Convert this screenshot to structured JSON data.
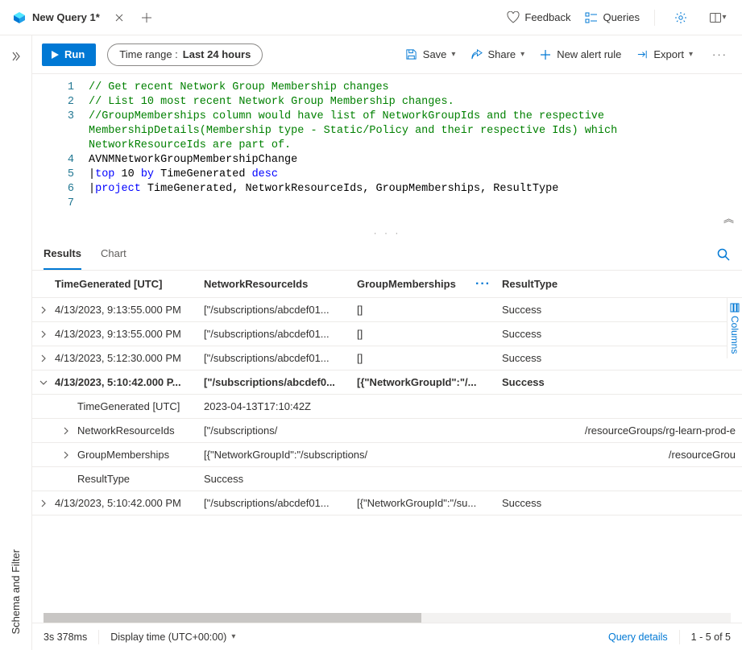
{
  "tab": {
    "title": "New Query 1*"
  },
  "topActions": {
    "feedback": "Feedback",
    "queries": "Queries"
  },
  "toolbar": {
    "run": "Run",
    "timerange_label": "Time range :",
    "timerange_value": "Last 24 hours",
    "save": "Save",
    "share": "Share",
    "newAlert": "New alert rule",
    "export": "Export"
  },
  "leftRail": {
    "label": "Schema and Filter"
  },
  "code": {
    "lines": [
      {
        "n": 1,
        "segs": [
          {
            "t": "// Get recent Network Group Membership changes",
            "c": "tok-comment"
          }
        ]
      },
      {
        "n": 2,
        "segs": [
          {
            "t": "// List 10 most recent Network Group Membership changes.",
            "c": "tok-comment"
          }
        ]
      },
      {
        "n": 3,
        "segs": [
          {
            "t": "//GroupMemberships column would have list of NetworkGroupIds and the respective",
            "c": "tok-comment"
          }
        ]
      },
      {
        "n": null,
        "segs": [
          {
            "t": "MembershipDetails(Membership type - Static/Policy and their respective Ids) which",
            "c": "tok-comment"
          }
        ]
      },
      {
        "n": null,
        "segs": [
          {
            "t": "NetworkResourceIds are part of.",
            "c": "tok-comment"
          }
        ]
      },
      {
        "n": 4,
        "segs": [
          {
            "t": "AVNMNetworkGroupMembershipChange",
            "c": "tok-ident"
          }
        ]
      },
      {
        "n": 5,
        "segs": [
          {
            "t": "|",
            "c": "tok-ident"
          },
          {
            "t": "top ",
            "c": "tok-keyword"
          },
          {
            "t": "10 ",
            "c": "tok-ident"
          },
          {
            "t": "by ",
            "c": "tok-keyword"
          },
          {
            "t": "TimeGenerated ",
            "c": "tok-ident"
          },
          {
            "t": "desc",
            "c": "tok-keyword"
          }
        ]
      },
      {
        "n": 6,
        "segs": [
          {
            "t": "|",
            "c": "tok-ident"
          },
          {
            "t": "project ",
            "c": "tok-keyword"
          },
          {
            "t": "TimeGenerated, NetworkResourceIds, GroupMemberships, ResultType",
            "c": "tok-ident"
          }
        ]
      },
      {
        "n": 7,
        "segs": [
          {
            "t": "",
            "c": ""
          }
        ]
      }
    ]
  },
  "resultsTabs": {
    "results": "Results",
    "chart": "Chart"
  },
  "columns": {
    "time": "TimeGenerated [UTC]",
    "net": "NetworkResourceIds",
    "grp": "GroupMemberships",
    "res": "ResultType"
  },
  "rows": [
    {
      "time": "4/13/2023, 9:13:55.000 PM",
      "net": "[\"/subscriptions/abcdef01...",
      "grp": "[]",
      "res": "Success",
      "expanded": false
    },
    {
      "time": "4/13/2023, 9:13:55.000 PM",
      "net": "[\"/subscriptions/abcdef01...",
      "grp": "[]",
      "res": "Success",
      "expanded": false
    },
    {
      "time": "4/13/2023, 5:12:30.000 PM",
      "net": "[\"/subscriptions/abcdef01...",
      "grp": "[]",
      "res": "Success",
      "expanded": false
    },
    {
      "time": "4/13/2023, 5:10:42.000 P...",
      "net": "[\"/subscriptions/abcdef0...",
      "grp": "[{\"NetworkGroupId\":\"/...",
      "res": "Success",
      "expanded": true,
      "details": [
        {
          "key": "TimeGenerated [UTC]",
          "val": "2023-04-13T17:10:42Z",
          "expandable": false
        },
        {
          "key": "NetworkResourceIds",
          "val": "[\"/subscriptions/",
          "tail": "/resourceGroups/rg-learn-prod-e",
          "expandable": true
        },
        {
          "key": "GroupMemberships",
          "val": "[{\"NetworkGroupId\":\"/subscriptions/",
          "tail": "/resourceGrou",
          "expandable": true
        },
        {
          "key": "ResultType",
          "val": "Success",
          "expandable": false
        }
      ]
    },
    {
      "time": "4/13/2023, 5:10:42.000 PM",
      "net": "[\"/subscriptions/abcdef01...",
      "grp": "[{\"NetworkGroupId\":\"/su...",
      "res": "Success",
      "expanded": false
    }
  ],
  "columnsRail": "Columns",
  "status": {
    "duration": "3s 378ms",
    "displayTime": "Display time (UTC+00:00)",
    "queryDetails": "Query details",
    "range": "1 - 5 of 5"
  }
}
